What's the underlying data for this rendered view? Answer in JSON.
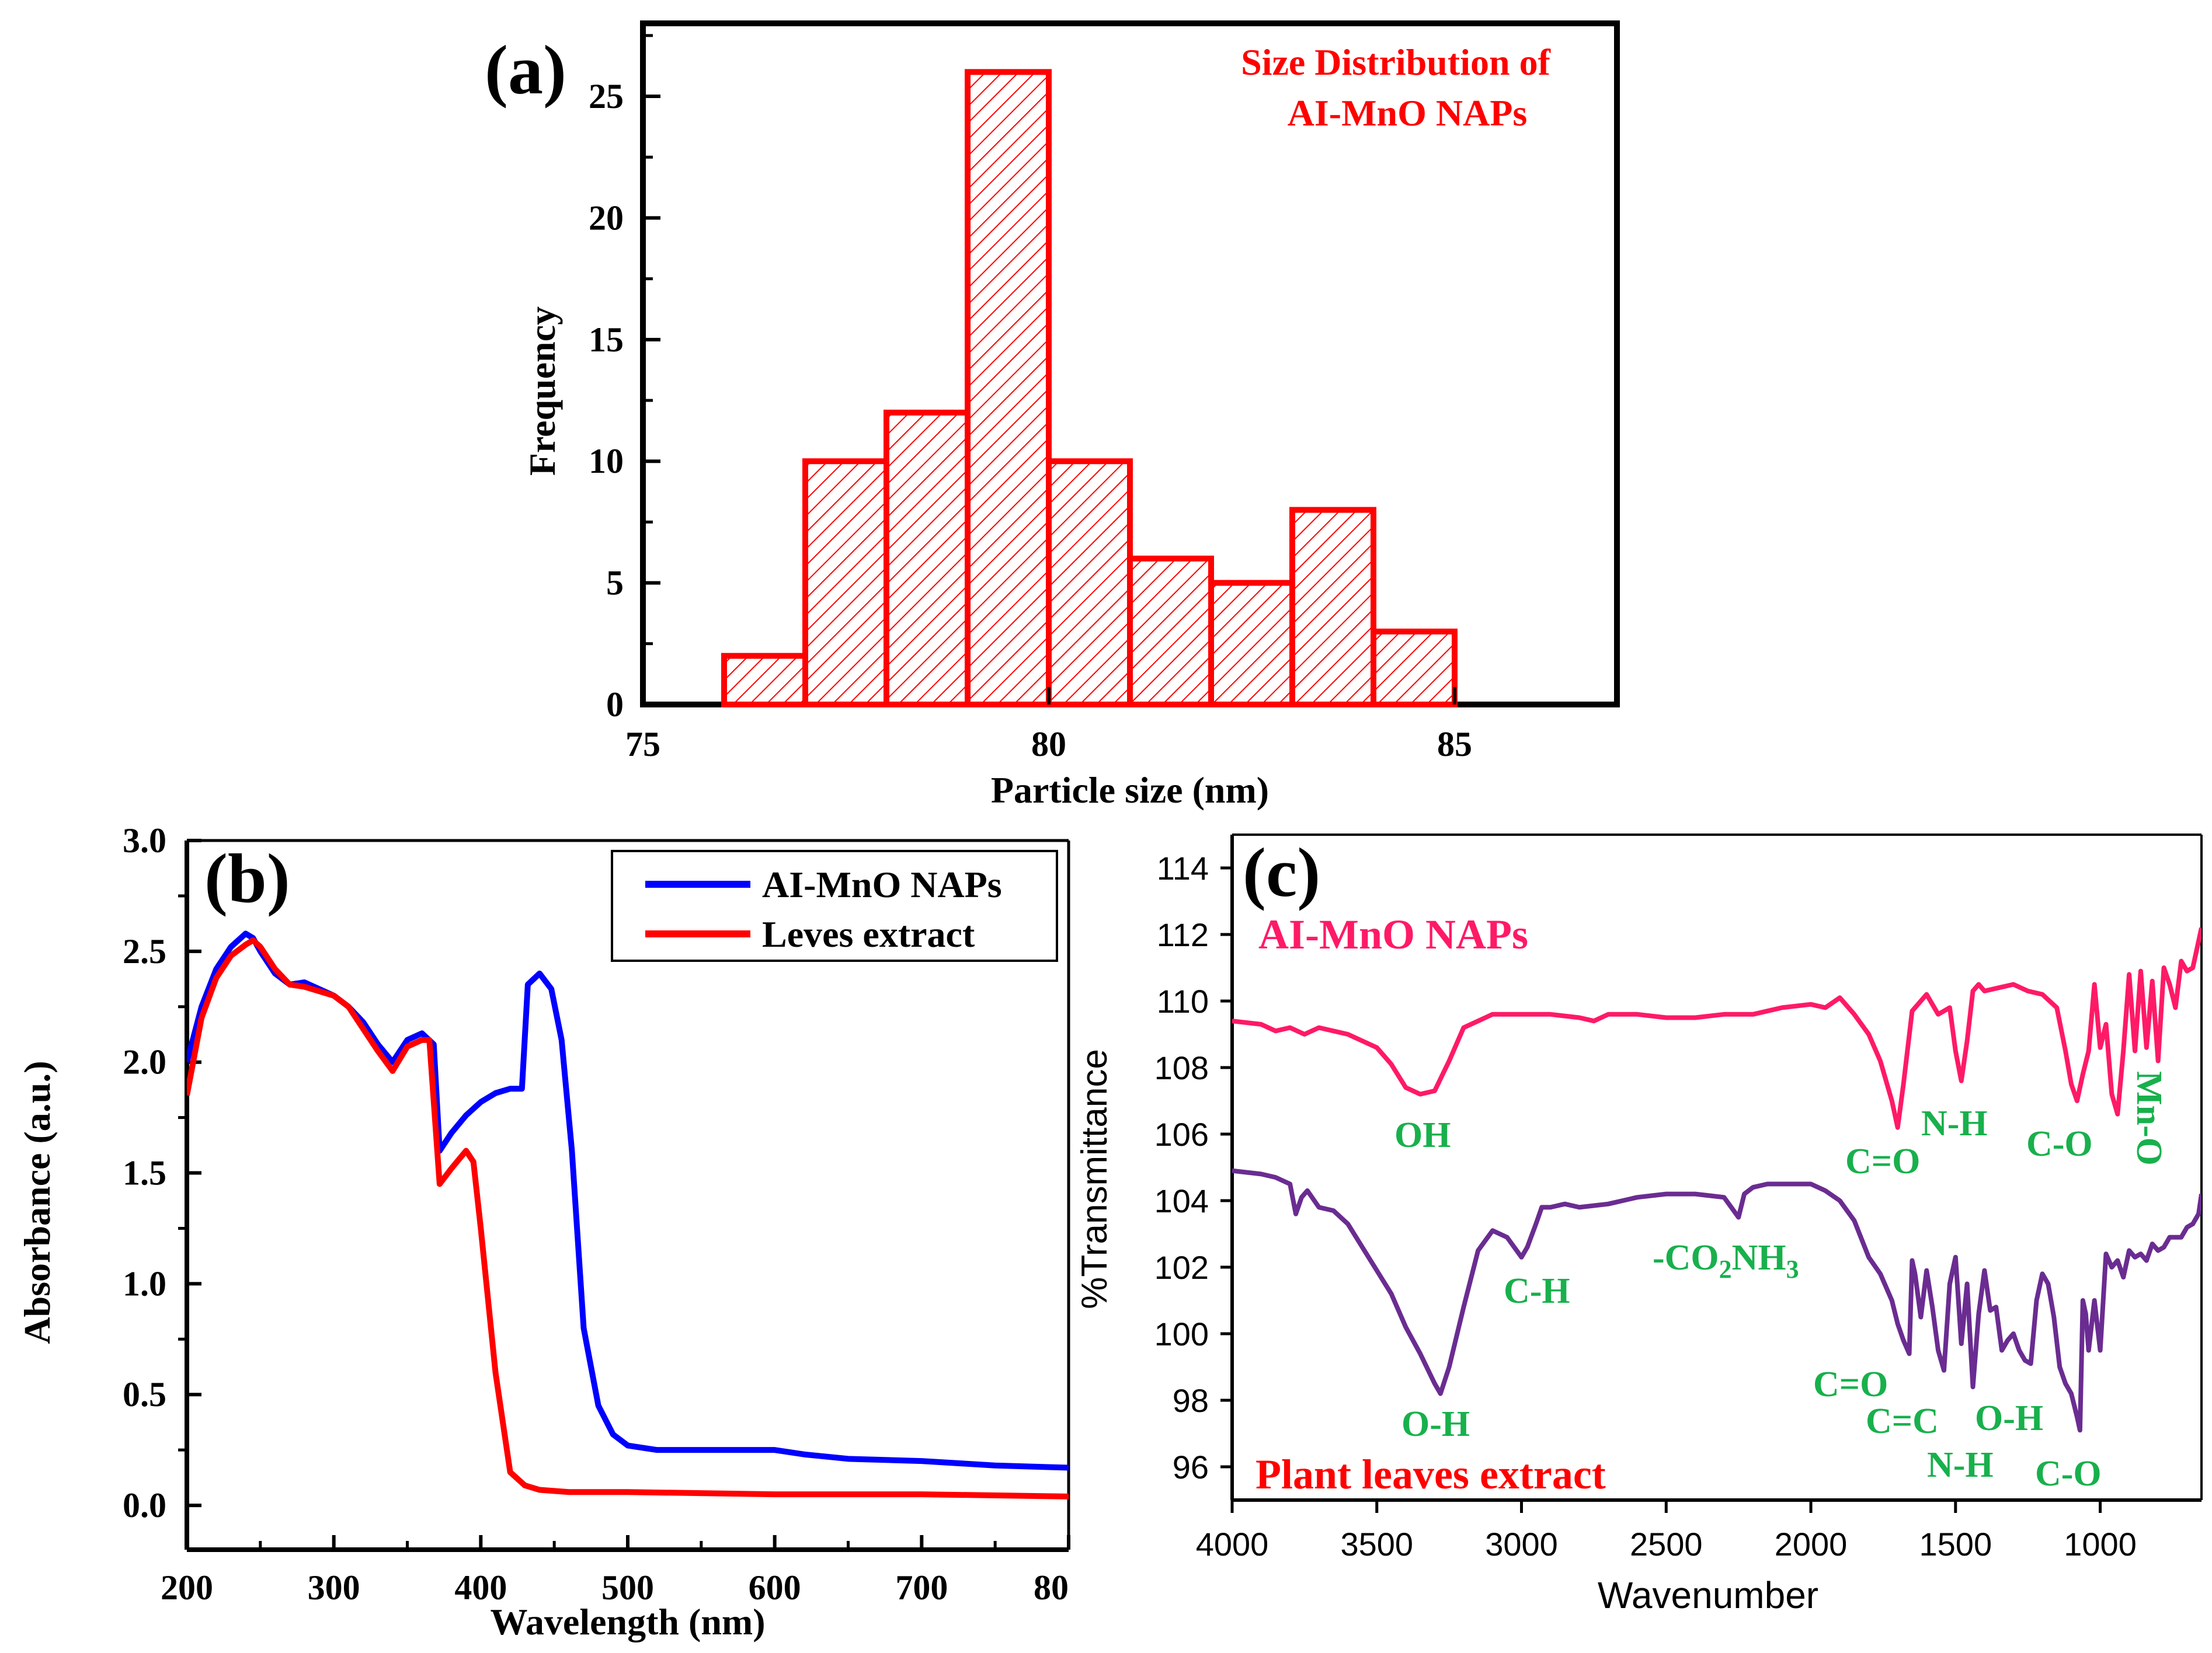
{
  "colors": {
    "red": "#ff0000",
    "blue": "#0000ff",
    "pink": "#ff1a66",
    "purple": "#6a2c91",
    "green": "#18b04c",
    "axis": "#000000"
  },
  "chart_data": [
    {
      "id": "a",
      "type": "bar",
      "panel_label": "(a)",
      "title_lines": [
        "Size Distribution of",
        "AI-MnO NAPs"
      ],
      "xlabel": "Particle size (nm)",
      "ylabel": "Frequency",
      "xlim": [
        75,
        87
      ],
      "ylim": [
        0,
        28
      ],
      "x_ticks": [
        "75",
        "80",
        "85"
      ],
      "y_ticks": [
        "0",
        "5",
        "10",
        "15",
        "20",
        "25"
      ],
      "bins": [
        {
          "from": 76,
          "to": 77,
          "value": 2
        },
        {
          "from": 77,
          "to": 78,
          "value": 10
        },
        {
          "from": 78,
          "to": 79,
          "value": 12
        },
        {
          "from": 79,
          "to": 80,
          "value": 26
        },
        {
          "from": 80,
          "to": 81,
          "value": 10
        },
        {
          "from": 81,
          "to": 82,
          "value": 6
        },
        {
          "from": 82,
          "to": 83,
          "value": 5
        },
        {
          "from": 83,
          "to": 84,
          "value": 8
        },
        {
          "from": 84,
          "to": 85,
          "value": 3
        }
      ]
    },
    {
      "id": "b",
      "type": "line",
      "panel_label": "(b)",
      "xlabel": "Wavelength (nm)",
      "ylabel": "Absorbance (a.u.)",
      "xlim": [
        200,
        800
      ],
      "ylim": [
        -0.2,
        3.0
      ],
      "x_ticks": [
        "200",
        "300",
        "400",
        "500",
        "600",
        "700",
        "80"
      ],
      "y_ticks": [
        "0.0",
        "0.5",
        "1.0",
        "1.5",
        "2.0",
        "2.5",
        "3.0"
      ],
      "legend": [
        "AI-MnO NAPs",
        "Leves extract"
      ],
      "series": [
        {
          "name": "AI-MnO NAPs",
          "x": [
            200,
            210,
            220,
            230,
            240,
            245,
            250,
            260,
            270,
            280,
            290,
            300,
            310,
            320,
            330,
            340,
            350,
            360,
            368,
            372,
            380,
            390,
            400,
            410,
            420,
            428,
            432,
            440,
            448,
            455,
            462,
            470,
            480,
            490,
            500,
            520,
            550,
            580,
            600,
            620,
            650,
            700,
            750,
            800
          ],
          "values": [
            2.0,
            2.25,
            2.42,
            2.52,
            2.58,
            2.56,
            2.5,
            2.4,
            2.35,
            2.36,
            2.33,
            2.3,
            2.25,
            2.18,
            2.08,
            2.0,
            2.1,
            2.13,
            2.08,
            1.6,
            1.68,
            1.76,
            1.82,
            1.86,
            1.88,
            1.88,
            2.35,
            2.4,
            2.33,
            2.1,
            1.6,
            0.8,
            0.45,
            0.32,
            0.27,
            0.25,
            0.25,
            0.25,
            0.25,
            0.23,
            0.21,
            0.2,
            0.18,
            0.17
          ]
        },
        {
          "name": "Leves extract",
          "x": [
            200,
            210,
            220,
            230,
            240,
            245,
            250,
            260,
            270,
            280,
            290,
            300,
            310,
            320,
            330,
            340,
            350,
            360,
            365,
            372,
            380,
            390,
            395,
            400,
            410,
            420,
            430,
            440,
            460,
            500,
            600,
            700,
            800
          ],
          "values": [
            1.85,
            2.2,
            2.38,
            2.48,
            2.53,
            2.55,
            2.52,
            2.42,
            2.35,
            2.34,
            2.32,
            2.3,
            2.25,
            2.15,
            2.05,
            1.96,
            2.07,
            2.1,
            2.1,
            1.45,
            1.52,
            1.6,
            1.55,
            1.25,
            0.6,
            0.15,
            0.09,
            0.07,
            0.06,
            0.06,
            0.05,
            0.05,
            0.04
          ]
        }
      ]
    },
    {
      "id": "c",
      "type": "line",
      "panel_label": "(c)",
      "xlabel": "Wavenumber",
      "ylabel": "%Transmittance",
      "xlim": [
        4000,
        650
      ],
      "ylim": [
        95,
        115
      ],
      "x_ticks": [
        "4000",
        "3500",
        "3000",
        "2500",
        "2000",
        "1500",
        "1000"
      ],
      "y_ticks": [
        "96",
        "98",
        "100",
        "102",
        "104",
        "106",
        "108",
        "110",
        "112",
        "114"
      ],
      "series_labels": [
        "AI-MnO NAPs",
        "Plant leaves extract"
      ],
      "annotations": [
        "OH",
        "C=O",
        "N-H",
        "C-O",
        "Mn-O",
        "C-H",
        "-CO",
        "2",
        "NH",
        "3",
        "C=O",
        "C=C",
        "N-H",
        "O-H",
        "C-O",
        "O-H"
      ],
      "series": [
        {
          "name": "AI-MnO NAPs",
          "x": [
            4000,
            3900,
            3850,
            3800,
            3750,
            3700,
            3600,
            3500,
            3450,
            3400,
            3350,
            3300,
            3250,
            3200,
            3100,
            3000,
            2900,
            2800,
            2750,
            2700,
            2600,
            2500,
            2400,
            2300,
            2200,
            2100,
            2000,
            1950,
            1900,
            1850,
            1800,
            1760,
            1720,
            1700,
            1680,
            1650,
            1600,
            1560,
            1520,
            1500,
            1480,
            1460,
            1440,
            1420,
            1400,
            1350,
            1300,
            1250,
            1200,
            1150,
            1120,
            1100,
            1080,
            1060,
            1040,
            1020,
            1000,
            980,
            960,
            940,
            920,
            900,
            880,
            860,
            840,
            820,
            800,
            780,
            760,
            740,
            720,
            700,
            680,
            660,
            650
          ],
          "values": [
            109.4,
            109.3,
            109.1,
            109.2,
            109.0,
            109.2,
            109.0,
            108.6,
            108.1,
            107.4,
            107.2,
            107.3,
            108.2,
            109.2,
            109.6,
            109.6,
            109.6,
            109.5,
            109.4,
            109.6,
            109.6,
            109.5,
            109.5,
            109.6,
            109.6,
            109.8,
            109.9,
            109.8,
            110.1,
            109.6,
            109.0,
            108.2,
            107.0,
            106.2,
            107.5,
            109.7,
            110.2,
            109.6,
            109.8,
            108.5,
            107.6,
            108.8,
            110.3,
            110.5,
            110.3,
            110.4,
            110.5,
            110.3,
            110.2,
            109.8,
            108.5,
            107.5,
            107.0,
            107.8,
            108.5,
            110.5,
            108.6,
            109.3,
            107.2,
            106.6,
            108.5,
            110.8,
            108.5,
            110.9,
            108.6,
            110.6,
            108.2,
            111.0,
            110.5,
            109.8,
            111.2,
            110.9,
            111.0,
            111.8,
            112.2
          ]
        },
        {
          "name": "Plant leaves extract",
          "x": [
            4000,
            3900,
            3850,
            3800,
            3780,
            3760,
            3740,
            3700,
            3650,
            3600,
            3550,
            3500,
            3450,
            3400,
            3350,
            3300,
            3280,
            3250,
            3200,
            3150,
            3100,
            3050,
            3000,
            2980,
            2950,
            2930,
            2900,
            2850,
            2800,
            2700,
            2600,
            2500,
            2400,
            2300,
            2250,
            2230,
            2200,
            2150,
            2100,
            2000,
            1950,
            1900,
            1850,
            1800,
            1760,
            1720,
            1700,
            1680,
            1660,
            1650,
            1640,
            1620,
            1600,
            1580,
            1560,
            1540,
            1520,
            1500,
            1480,
            1460,
            1440,
            1420,
            1400,
            1380,
            1360,
            1340,
            1320,
            1300,
            1280,
            1260,
            1240,
            1220,
            1200,
            1180,
            1160,
            1140,
            1120,
            1100,
            1080,
            1070,
            1060,
            1050,
            1040,
            1020,
            1000,
            980,
            960,
            940,
            920,
            900,
            880,
            860,
            840,
            820,
            800,
            780,
            760,
            740,
            720,
            700,
            680,
            660,
            650
          ],
          "values": [
            104.9,
            104.8,
            104.7,
            104.5,
            103.6,
            104.1,
            104.3,
            103.8,
            103.7,
            103.3,
            102.6,
            101.9,
            101.2,
            100.2,
            99.4,
            98.5,
            98.2,
            99.0,
            100.8,
            102.5,
            103.1,
            102.9,
            102.3,
            102.6,
            103.3,
            103.8,
            103.8,
            103.9,
            103.8,
            103.9,
            104.1,
            104.2,
            104.2,
            104.1,
            103.5,
            104.2,
            104.4,
            104.5,
            104.5,
            104.5,
            104.3,
            104.0,
            103.4,
            102.3,
            101.8,
            101.0,
            100.3,
            99.8,
            99.4,
            102.2,
            101.8,
            100.5,
            101.9,
            100.8,
            99.5,
            98.9,
            101.5,
            102.3,
            99.7,
            101.5,
            98.4,
            100.6,
            101.9,
            100.7,
            100.8,
            99.5,
            99.8,
            100.0,
            99.5,
            99.2,
            99.1,
            101.0,
            101.8,
            101.5,
            100.5,
            99.0,
            98.5,
            98.2,
            97.5,
            97.1,
            101.0,
            100.6,
            99.5,
            101.0,
            99.5,
            102.4,
            102.0,
            102.2,
            101.7,
            102.5,
            102.3,
            102.4,
            102.2,
            102.7,
            102.5,
            102.6,
            102.9,
            102.9,
            102.9,
            103.2,
            103.3,
            103.6,
            104.2
          ]
        }
      ]
    }
  ]
}
